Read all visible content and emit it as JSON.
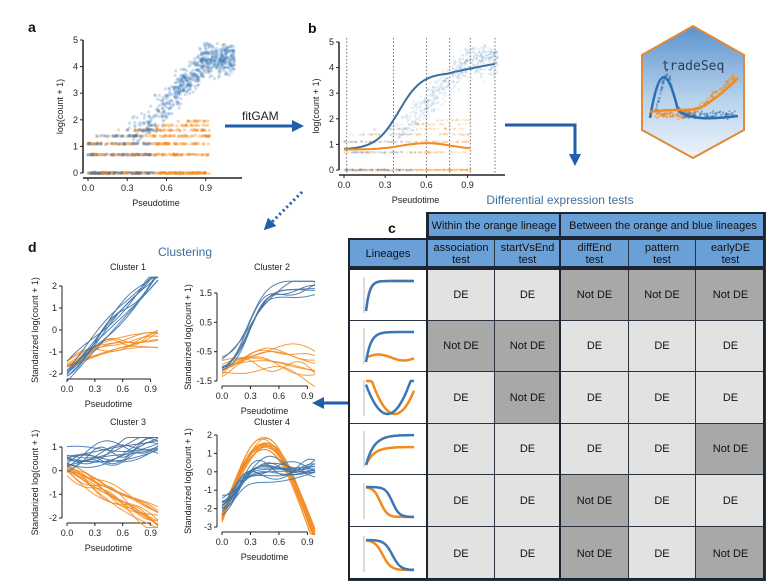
{
  "colors": {
    "blue": "#3a78b4",
    "orange": "#f28a1e",
    "header": "#6aa0d8",
    "de_cell": "#e2e2e2",
    "not_de_cell": "#a8a8a8",
    "title_blue": "#3f6e9e"
  },
  "panel_labels": {
    "a": "a",
    "b": "b",
    "c": "c",
    "d": "d"
  },
  "panel_a": {
    "ylabel": "log(count + 1)",
    "xlabel": "Pseudotime",
    "yticks": [
      "0",
      "1",
      "2",
      "3",
      "4",
      "5"
    ],
    "xticks": [
      "0.0",
      "0.3",
      "0.6",
      "0.9"
    ]
  },
  "panel_b": {
    "ylabel": "log(count + 1)",
    "xlabel": "Pseudotime",
    "yticks": [
      "0",
      "1",
      "2",
      "3",
      "4",
      "5"
    ],
    "xticks": [
      "0.0",
      "0.3",
      "0.6",
      "0.9"
    ]
  },
  "arrow_label": "fitGAM",
  "logo": {
    "text": "tradeSeq"
  },
  "de_title": "Differential expression tests",
  "table": {
    "group_headers": [
      "Within the orange lineage",
      "Between the orange and blue lineages"
    ],
    "lineages_header": "Lineages",
    "columns": [
      [
        "association",
        "test"
      ],
      [
        "startVsEnd",
        "test"
      ],
      [
        "diffEnd",
        "test"
      ],
      [
        "pattern",
        "test"
      ],
      [
        "earlyDE",
        "test"
      ]
    ],
    "rows": [
      [
        "DE",
        "DE",
        "Not DE",
        "Not DE",
        "Not DE"
      ],
      [
        "Not DE",
        "Not DE",
        "DE",
        "DE",
        "DE"
      ],
      [
        "DE",
        "Not DE",
        "DE",
        "DE",
        "DE"
      ],
      [
        "DE",
        "DE",
        "DE",
        "DE",
        "Not DE"
      ],
      [
        "DE",
        "DE",
        "Not DE",
        "DE",
        "DE"
      ],
      [
        "DE",
        "DE",
        "Not DE",
        "DE",
        "Not DE"
      ]
    ]
  },
  "clustering": {
    "title": "Clustering",
    "ylabel": "Standarized log(count + 1)",
    "xlabel": "Pseudotime",
    "xticks": [
      "0.0",
      "0.3",
      "0.6",
      "0.9"
    ],
    "clusters": [
      {
        "title": "Cluster 1",
        "yticks": [
          "-2",
          "-1",
          "0",
          "1",
          "2"
        ]
      },
      {
        "title": "Cluster 2",
        "yticks": [
          "-1.5",
          "-0.5",
          "0.5",
          "1.5"
        ]
      },
      {
        "title": "Cluster 3",
        "yticks": [
          "-2",
          "-1",
          "0",
          "1"
        ]
      },
      {
        "title": "Cluster 4",
        "yticks": [
          "-3",
          "-2",
          "-1",
          "0",
          "1",
          "2"
        ]
      }
    ]
  }
}
